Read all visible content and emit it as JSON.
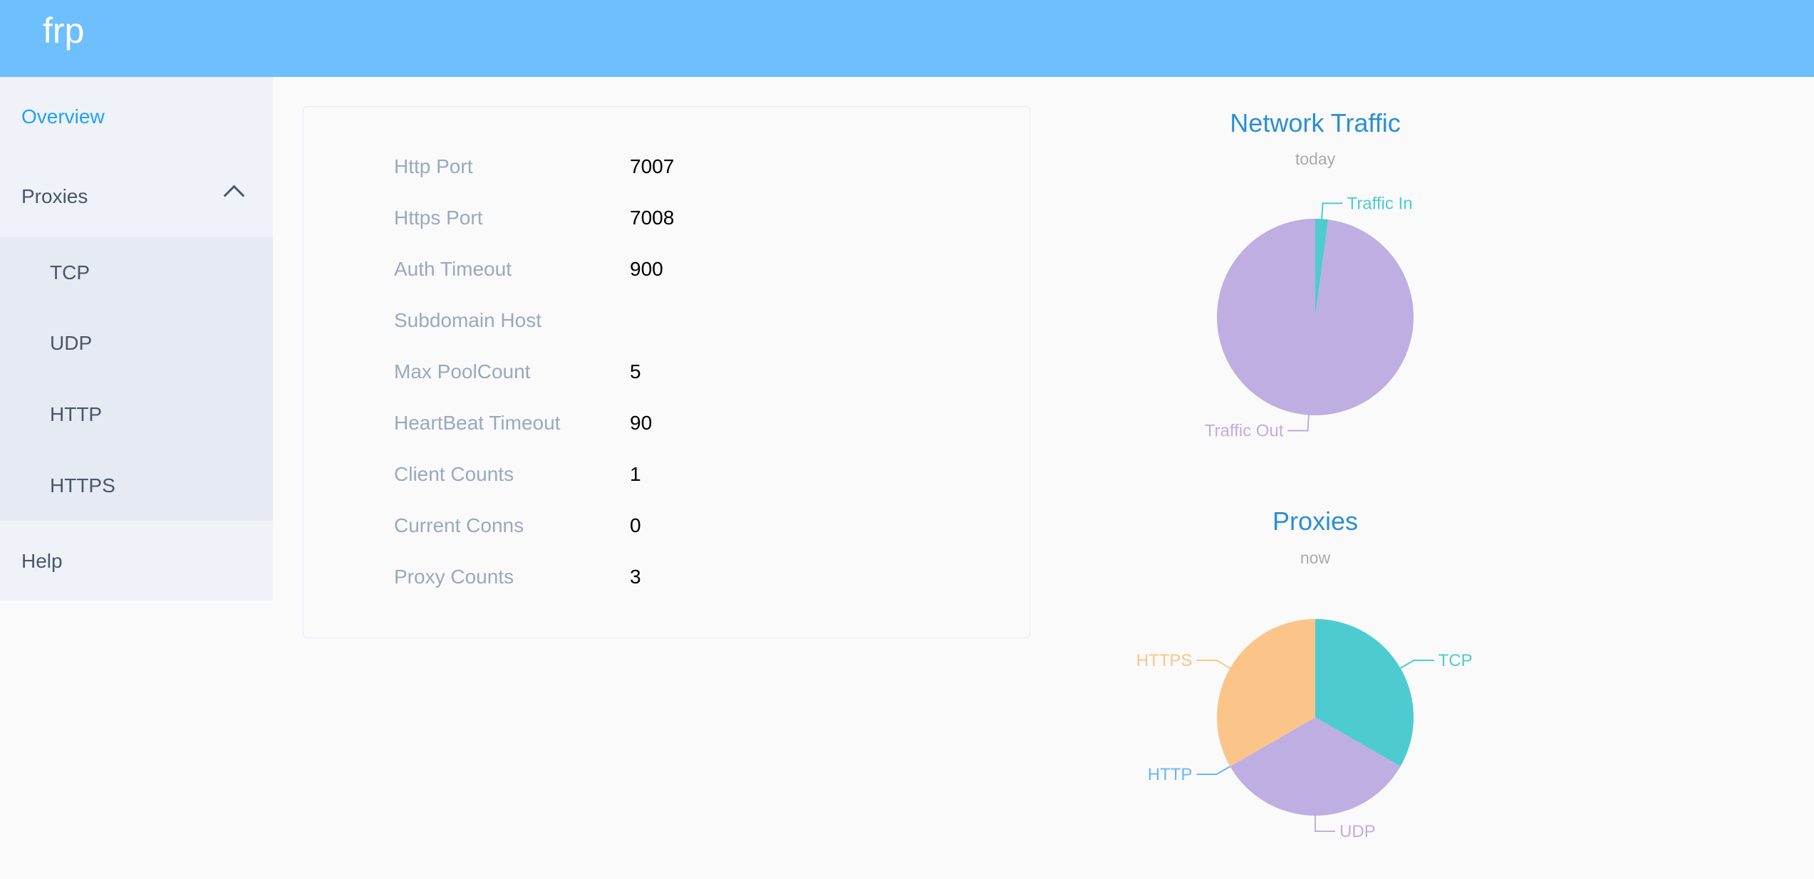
{
  "header": {
    "logo": "frp",
    "color": "#6ebffe"
  },
  "sidebar": {
    "overview": "Overview",
    "proxies": "Proxies",
    "proxy_items": [
      "TCP",
      "UDP",
      "HTTP",
      "HTTPS"
    ],
    "help": "Help"
  },
  "server_info": [
    {
      "label": "Http Port",
      "value": "7007"
    },
    {
      "label": "Https Port",
      "value": "7008"
    },
    {
      "label": "Auth Timeout",
      "value": "900"
    },
    {
      "label": "Subdomain Host",
      "value": ""
    },
    {
      "label": "Max PoolCount",
      "value": "5"
    },
    {
      "label": "HeartBeat Timeout",
      "value": "90"
    },
    {
      "label": "Client Counts",
      "value": "1"
    },
    {
      "label": "Current Conns",
      "value": "0"
    },
    {
      "label": "Proxy Counts",
      "value": "3"
    }
  ],
  "chart_data": [
    {
      "type": "pie",
      "title": "Network Traffic",
      "subtitle": "today",
      "categories": [
        "Traffic In",
        "Traffic Out"
      ],
      "values": [
        2.1,
        97.9
      ],
      "colors": [
        "#4ecbd1",
        "#bfaee2"
      ]
    },
    {
      "type": "pie",
      "title": "Proxies",
      "subtitle": "now",
      "categories": [
        "TCP",
        "UDP",
        "HTTP",
        "HTTPS"
      ],
      "values": [
        1,
        1,
        0,
        1
      ],
      "colors": [
        "#4ecbd1",
        "#bfaee2",
        "#6ab6f2",
        "#fbc58a"
      ]
    }
  ]
}
